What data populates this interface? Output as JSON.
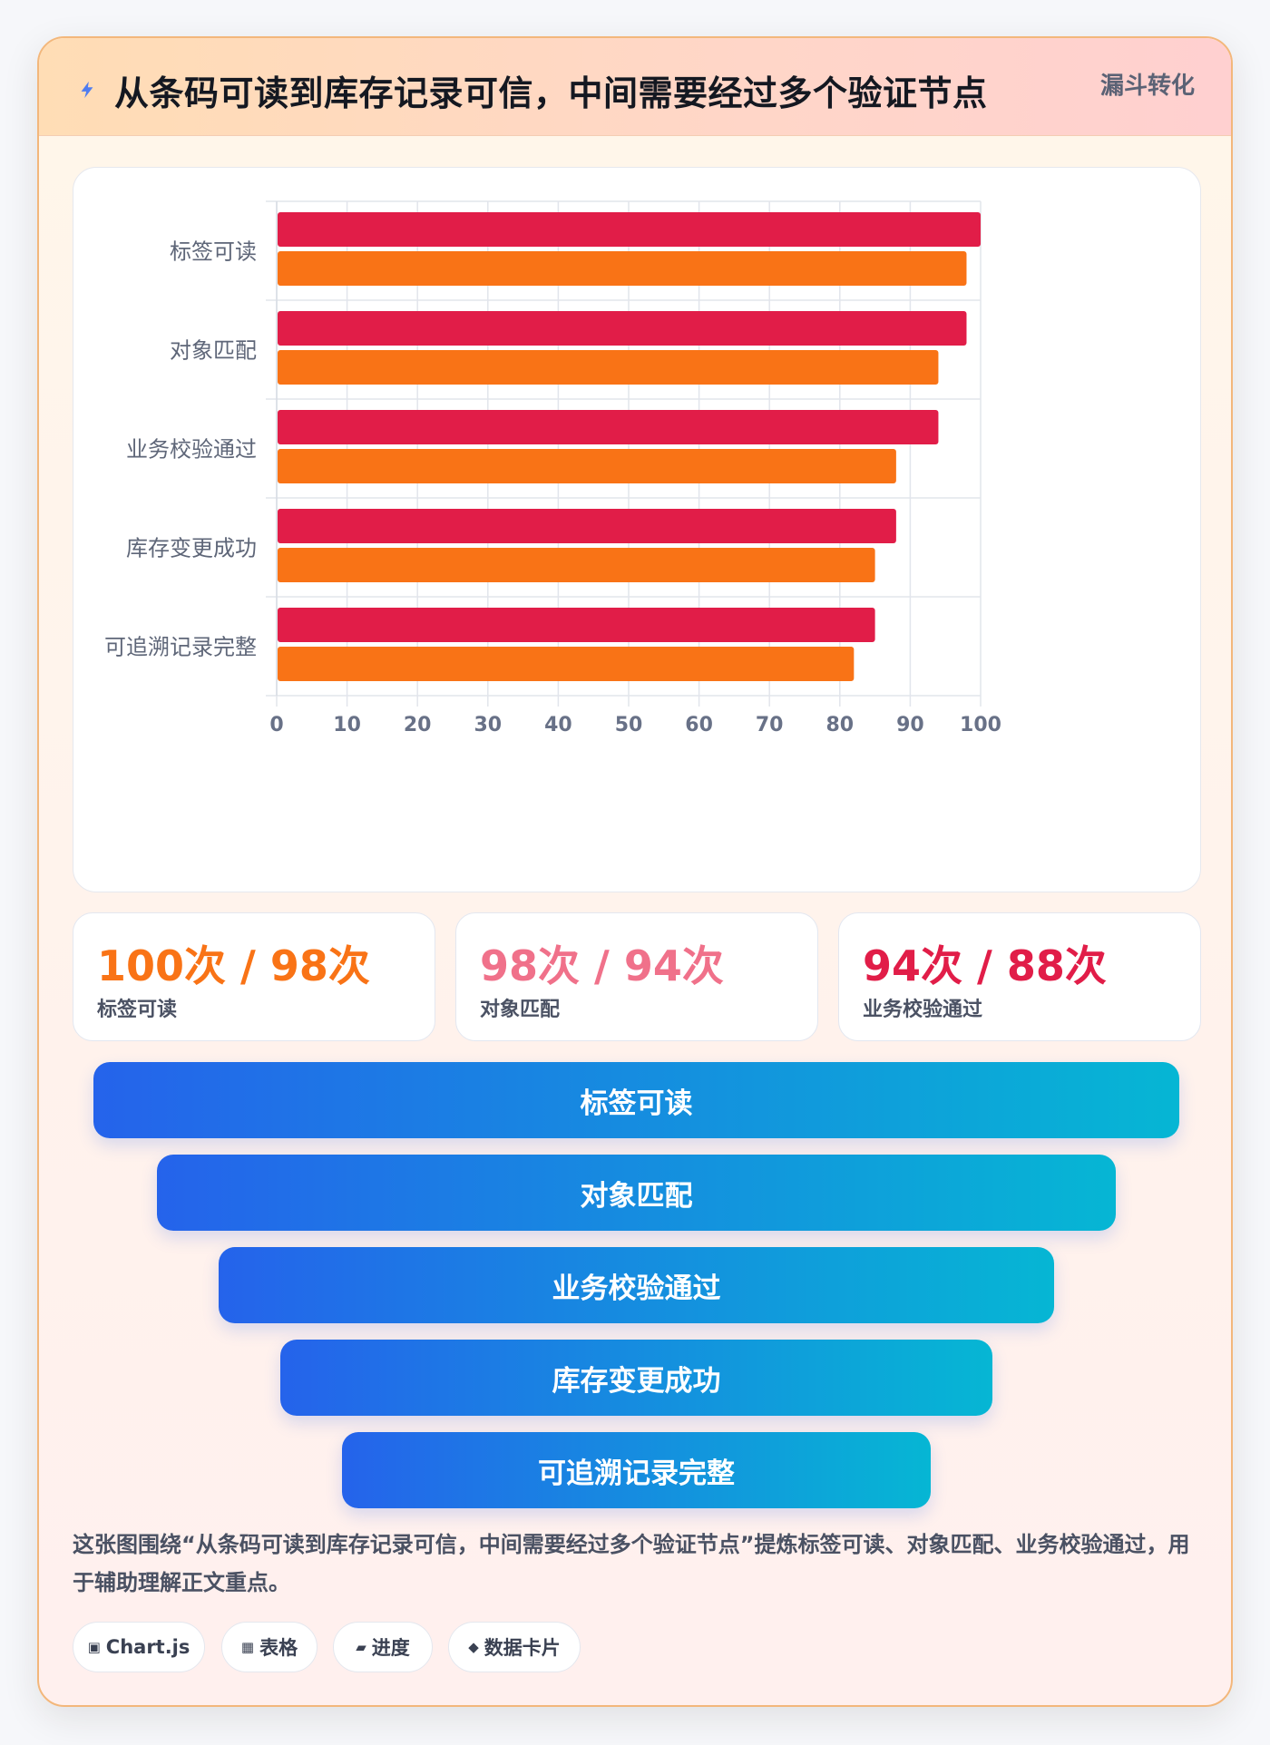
{
  "header": {
    "title": "从条码可读到库存记录可信，中间需要经过多个验证节点",
    "tag": "漏斗转化",
    "icon": "bolt-icon"
  },
  "chart_data": {
    "type": "bar",
    "orientation": "horizontal",
    "categories": [
      "标签可读",
      "对象匹配",
      "业务校验通过",
      "库存变更成功",
      "可追溯记录完整"
    ],
    "series": [
      {
        "values": [
          100,
          98,
          94,
          88,
          85
        ],
        "color": "#e11d48"
      },
      {
        "values": [
          98,
          94,
          88,
          85,
          82
        ],
        "color": "#f97316"
      }
    ],
    "xlim": [
      0,
      100
    ],
    "xticks": [
      0,
      10,
      20,
      30,
      40,
      50,
      60,
      70,
      80,
      90,
      100
    ],
    "grid": true,
    "legend": "none",
    "title": "",
    "xlabel": "",
    "ylabel": ""
  },
  "stats": [
    {
      "value": "100次 / 98次",
      "label": "标签可读",
      "color": "#f97316"
    },
    {
      "value": "98次 / 94次",
      "label": "对象匹配",
      "color": "#f0718a"
    },
    {
      "value": "94次 / 88次",
      "label": "业务校验通过",
      "color": "#e11d48"
    }
  ],
  "funnel": {
    "stages": [
      "标签可读",
      "对象匹配",
      "业务校验通过",
      "库存变更成功",
      "可追溯记录完整"
    ]
  },
  "note": "这张图围绕“从条码可读到库存记录可信，中间需要经过多个验证节点”提炼标签可读、对象匹配、业务校验通过，用于辅助理解正文重点。",
  "chips": [
    {
      "icon": "▣",
      "label": "Chart.js"
    },
    {
      "icon": "▦",
      "label": "表格"
    },
    {
      "icon": "▰",
      "label": "进度"
    },
    {
      "icon": "◆",
      "label": "数据卡片"
    }
  ]
}
